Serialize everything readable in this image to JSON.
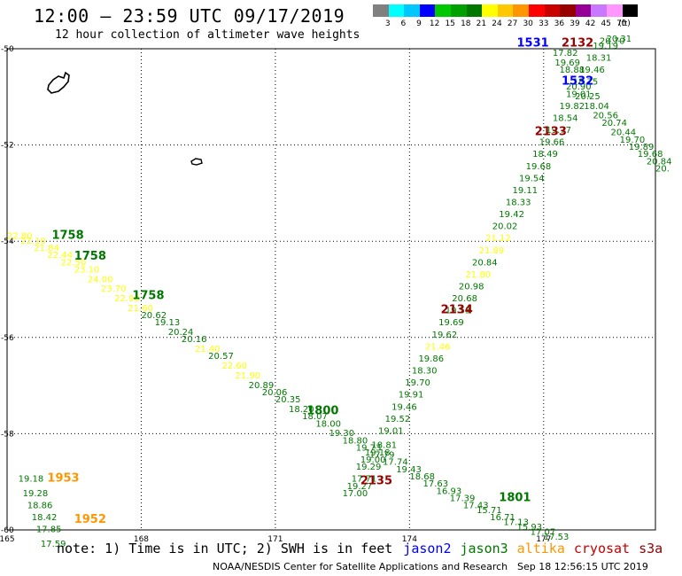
{
  "header": {
    "title": "12:00 – 23:59 UTC 09/17/2019",
    "subtitle": "12 hour collection of altimeter wave heights"
  },
  "colorbar": {
    "unit": "(ft)",
    "bins": [
      {
        "label": "3",
        "color": "#808080"
      },
      {
        "label": "6",
        "color": "#00ffff"
      },
      {
        "label": "9",
        "color": "#00c8ff"
      },
      {
        "label": "12",
        "color": "#0000ff"
      },
      {
        "label": "15",
        "color": "#00c800"
      },
      {
        "label": "18",
        "color": "#00a000"
      },
      {
        "label": "21",
        "color": "#007800"
      },
      {
        "label": "24",
        "color": "#ffff00"
      },
      {
        "label": "27",
        "color": "#ffc800"
      },
      {
        "label": "30",
        "color": "#ff9600"
      },
      {
        "label": "33",
        "color": "#ff0000"
      },
      {
        "label": "36",
        "color": "#c80000"
      },
      {
        "label": "39",
        "color": "#960000"
      },
      {
        "label": "42",
        "color": "#960096"
      },
      {
        "label": "45",
        "color": "#c878ff"
      },
      {
        "label": "70",
        "color": "#ff96ff"
      },
      {
        "label": "",
        "color": "#000000"
      }
    ]
  },
  "map": {
    "lon_labels": [
      "165",
      "168",
      "171",
      "174",
      "177"
    ],
    "lat_labels": [
      "-50",
      "-52",
      "-54",
      "-56",
      "-58",
      "-60"
    ],
    "lon_min": 165,
    "lon_max": 179.5,
    "lat_max": -50,
    "lat_min": -60,
    "islands": [
      {
        "name": "auckland-islands"
      },
      {
        "name": "campbell-island"
      }
    ],
    "time_labels": [
      {
        "text": "1758",
        "lon": 166.0,
        "lat": -53.95,
        "color": "#007800"
      },
      {
        "text": "1758",
        "lon": 166.5,
        "lat": -54.38,
        "color": "#007800"
      },
      {
        "text": "1758",
        "lon": 167.8,
        "lat": -55.2,
        "color": "#007800"
      },
      {
        "text": "1800",
        "lon": 171.7,
        "lat": -57.6,
        "color": "#007800"
      },
      {
        "text": "1953",
        "lon": 165.9,
        "lat": -59.0,
        "color": "#ff9600"
      },
      {
        "text": "1952",
        "lon": 166.5,
        "lat": -59.85,
        "color": "#ff9600"
      },
      {
        "text": "2135",
        "lon": 172.9,
        "lat": -59.05,
        "color": "#960000"
      },
      {
        "text": "2134",
        "lon": 174.7,
        "lat": -55.5,
        "color": "#960000"
      },
      {
        "text": "2133",
        "lon": 176.8,
        "lat": -51.8,
        "color": "#960000"
      },
      {
        "text": "2132",
        "lon": 177.4,
        "lat": -49.95,
        "color": "#960000"
      },
      {
        "text": "1531",
        "lon": 176.4,
        "lat": -49.95,
        "color": "#0000ff"
      },
      {
        "text": "1532",
        "lon": 177.4,
        "lat": -50.75,
        "color": "#0000ff"
      },
      {
        "text": "1801",
        "lon": 176.0,
        "lat": -59.4,
        "color": "#007800"
      }
    ],
    "tracks": [
      {
        "name": "track-a",
        "points": [
          {
            "lon": 165.0,
            "lat": -53.95,
            "v": "22.80",
            "color": "#ffff00"
          },
          {
            "lon": 165.3,
            "lat": -54.05,
            "v": "22.10",
            "color": "#ffff00"
          },
          {
            "lon": 165.6,
            "lat": -54.2,
            "v": "21.84",
            "color": "#ffff00"
          },
          {
            "lon": 165.9,
            "lat": -54.35,
            "v": "22.44",
            "color": "#ffff00"
          },
          {
            "lon": 166.2,
            "lat": -54.5,
            "v": "22.50",
            "color": "#ffff00"
          },
          {
            "lon": 166.5,
            "lat": -54.65,
            "v": "23.10",
            "color": "#ffff00"
          },
          {
            "lon": 166.8,
            "lat": -54.85,
            "v": "24.00",
            "color": "#ffff00"
          },
          {
            "lon": 167.1,
            "lat": -55.05,
            "v": "23.70",
            "color": "#ffff00"
          },
          {
            "lon": 167.4,
            "lat": -55.25,
            "v": "22.90",
            "color": "#ffff00"
          },
          {
            "lon": 167.7,
            "lat": -55.45,
            "v": "21.60",
            "color": "#ffff00"
          },
          {
            "lon": 168.0,
            "lat": -55.6,
            "v": "20.62",
            "color": "#007800"
          },
          {
            "lon": 168.3,
            "lat": -55.75,
            "v": "19.13",
            "color": "#007800"
          },
          {
            "lon": 168.6,
            "lat": -55.95,
            "v": "20.24",
            "color": "#007800"
          },
          {
            "lon": 168.9,
            "lat": -56.1,
            "v": "20.16",
            "color": "#007800"
          },
          {
            "lon": 169.2,
            "lat": -56.3,
            "v": "21.40",
            "color": "#ffff00"
          },
          {
            "lon": 169.5,
            "lat": -56.45,
            "v": "20.57",
            "color": "#007800"
          },
          {
            "lon": 169.8,
            "lat": -56.65,
            "v": "22.60",
            "color": "#ffff00"
          },
          {
            "lon": 170.1,
            "lat": -56.85,
            "v": "21.90",
            "color": "#ffff00"
          },
          {
            "lon": 170.4,
            "lat": -57.05,
            "v": "20.89",
            "color": "#007800"
          },
          {
            "lon": 170.7,
            "lat": -57.2,
            "v": "20.06",
            "color": "#007800"
          },
          {
            "lon": 171.0,
            "lat": -57.35,
            "v": "20.35",
            "color": "#007800"
          },
          {
            "lon": 171.3,
            "lat": -57.55,
            "v": "18.20",
            "color": "#007800"
          },
          {
            "lon": 171.6,
            "lat": -57.7,
            "v": "18.07",
            "color": "#007800"
          },
          {
            "lon": 171.9,
            "lat": -57.85,
            "v": "18.00",
            "color": "#007800"
          },
          {
            "lon": 172.2,
            "lat": -58.05,
            "v": "19.30",
            "color": "#007800"
          },
          {
            "lon": 172.5,
            "lat": -58.2,
            "v": "18.80",
            "color": "#007800"
          },
          {
            "lon": 172.8,
            "lat": -58.35,
            "v": "19.73",
            "color": "#007800"
          },
          {
            "lon": 173.1,
            "lat": -58.5,
            "v": "17.79",
            "color": "#007800"
          },
          {
            "lon": 173.4,
            "lat": -58.65,
            "v": "17.74",
            "color": "#007800"
          },
          {
            "lon": 173.7,
            "lat": -58.8,
            "v": "19.43",
            "color": "#007800"
          },
          {
            "lon": 174.0,
            "lat": -58.95,
            "v": "18.68",
            "color": "#007800"
          },
          {
            "lon": 174.3,
            "lat": -59.1,
            "v": "17.63",
            "color": "#007800"
          },
          {
            "lon": 174.6,
            "lat": -59.25,
            "v": "16.93",
            "color": "#007800"
          },
          {
            "lon": 174.9,
            "lat": -59.4,
            "v": "17.39",
            "color": "#007800"
          },
          {
            "lon": 175.2,
            "lat": -59.55,
            "v": "17.43",
            "color": "#007800"
          },
          {
            "lon": 175.5,
            "lat": -59.65,
            "v": "15.71",
            "color": "#007800"
          },
          {
            "lon": 175.8,
            "lat": -59.8,
            "v": "16.71",
            "color": "#007800"
          },
          {
            "lon": 176.1,
            "lat": -59.9,
            "v": "17.13",
            "color": "#007800"
          },
          {
            "lon": 176.4,
            "lat": -60.0,
            "v": "15.93",
            "color": "#007800"
          },
          {
            "lon": 176.7,
            "lat": -60.1,
            "v": "17.07",
            "color": "#007800"
          },
          {
            "lon": 177.0,
            "lat": -60.2,
            "v": "17.53",
            "color": "#007800"
          }
        ]
      },
      {
        "name": "track-b",
        "points": [
          {
            "lon": 172.5,
            "lat": -59.3,
            "v": "17.00",
            "color": "#007800"
          },
          {
            "lon": 172.6,
            "lat": -59.15,
            "v": "19.27",
            "color": "#007800"
          },
          {
            "lon": 172.7,
            "lat": -59.0,
            "v": "17.71",
            "color": "#007800"
          },
          {
            "lon": 172.8,
            "lat": -58.75,
            "v": "19.29",
            "color": "#007800"
          },
          {
            "lon": 172.9,
            "lat": -58.6,
            "v": "19.00",
            "color": "#007800"
          },
          {
            "lon": 173.0,
            "lat": -58.45,
            "v": "19.18",
            "color": "#007800"
          },
          {
            "lon": 173.15,
            "lat": -58.3,
            "v": "18.81",
            "color": "#007800"
          },
          {
            "lon": 173.3,
            "lat": -58.0,
            "v": "19.01",
            "color": "#007800"
          },
          {
            "lon": 173.45,
            "lat": -57.75,
            "v": "19.52",
            "color": "#007800"
          },
          {
            "lon": 173.6,
            "lat": -57.5,
            "v": "19.46",
            "color": "#007800"
          },
          {
            "lon": 173.75,
            "lat": -57.25,
            "v": "19.91",
            "color": "#007800"
          },
          {
            "lon": 173.9,
            "lat": -57.0,
            "v": "19.70",
            "color": "#007800"
          },
          {
            "lon": 174.05,
            "lat": -56.75,
            "v": "18.30",
            "color": "#007800"
          },
          {
            "lon": 174.2,
            "lat": -56.5,
            "v": "19.86",
            "color": "#007800"
          },
          {
            "lon": 174.35,
            "lat": -56.25,
            "v": "21.46",
            "color": "#ffff00"
          },
          {
            "lon": 174.5,
            "lat": -56.0,
            "v": "19.62",
            "color": "#007800"
          },
          {
            "lon": 174.65,
            "lat": -55.75,
            "v": "19.69",
            "color": "#007800"
          },
          {
            "lon": 174.8,
            "lat": -55.5,
            "v": "19.53",
            "color": "#007800"
          },
          {
            "lon": 174.95,
            "lat": -55.25,
            "v": "20.68",
            "color": "#007800"
          },
          {
            "lon": 175.1,
            "lat": -55.0,
            "v": "20.98",
            "color": "#007800"
          },
          {
            "lon": 175.25,
            "lat": -54.75,
            "v": "21.80",
            "color": "#ffff00"
          },
          {
            "lon": 175.4,
            "lat": -54.5,
            "v": "20.84",
            "color": "#007800"
          },
          {
            "lon": 175.55,
            "lat": -54.25,
            "v": "21.89",
            "color": "#ffff00"
          },
          {
            "lon": 175.7,
            "lat": -54.0,
            "v": "21.12",
            "color": "#ffff00"
          },
          {
            "lon": 175.85,
            "lat": -53.75,
            "v": "20.02",
            "color": "#007800"
          },
          {
            "lon": 176.0,
            "lat": -53.5,
            "v": "19.42",
            "color": "#007800"
          },
          {
            "lon": 176.15,
            "lat": -53.25,
            "v": "18.33",
            "color": "#007800"
          },
          {
            "lon": 176.3,
            "lat": -53.0,
            "v": "19.11",
            "color": "#007800"
          },
          {
            "lon": 176.45,
            "lat": -52.75,
            "v": "19.54",
            "color": "#007800"
          },
          {
            "lon": 176.6,
            "lat": -52.5,
            "v": "19.68",
            "color": "#007800"
          },
          {
            "lon": 176.75,
            "lat": -52.25,
            "v": "18.49",
            "color": "#007800"
          },
          {
            "lon": 176.9,
            "lat": -52.0,
            "v": "19.66",
            "color": "#007800"
          },
          {
            "lon": 177.05,
            "lat": -51.75,
            "v": "19.77",
            "color": "#007800"
          },
          {
            "lon": 177.2,
            "lat": -51.5,
            "v": "18.54",
            "color": "#007800"
          },
          {
            "lon": 177.35,
            "lat": -51.25,
            "v": "19.82",
            "color": "#007800"
          },
          {
            "lon": 177.5,
            "lat": -51.0,
            "v": "19.01",
            "color": "#007800"
          },
          {
            "lon": 177.65,
            "lat": -50.75,
            "v": "18.75",
            "color": "#007800"
          },
          {
            "lon": 177.8,
            "lat": -50.5,
            "v": "19.46",
            "color": "#007800"
          },
          {
            "lon": 177.95,
            "lat": -50.25,
            "v": "18.31",
            "color": "#007800"
          },
          {
            "lon": 178.1,
            "lat": -50.0,
            "v": "19.19",
            "color": "#007800"
          },
          {
            "lon": 178.25,
            "lat": -49.9,
            "v": "20.70",
            "color": "#007800"
          },
          {
            "lon": 178.4,
            "lat": -49.85,
            "v": "20.31",
            "color": "#007800"
          }
        ]
      },
      {
        "name": "track-c",
        "points": [
          {
            "lon": 177.2,
            "lat": -50.15,
            "v": "17.82",
            "color": "#007800"
          },
          {
            "lon": 177.25,
            "lat": -50.35,
            "v": "19.69",
            "color": "#007800"
          },
          {
            "lon": 177.35,
            "lat": -50.5,
            "v": "18.88",
            "color": "#007800"
          },
          {
            "lon": 177.5,
            "lat": -50.85,
            "v": "20.90",
            "color": "#007800"
          },
          {
            "lon": 177.7,
            "lat": -51.05,
            "v": "20.25",
            "color": "#007800"
          },
          {
            "lon": 177.9,
            "lat": -51.25,
            "v": "18.04",
            "color": "#007800"
          },
          {
            "lon": 178.1,
            "lat": -51.45,
            "v": "20.56",
            "color": "#007800"
          },
          {
            "lon": 178.3,
            "lat": -51.6,
            "v": "20.74",
            "color": "#007800"
          },
          {
            "lon": 178.5,
            "lat": -51.8,
            "v": "20.44",
            "color": "#007800"
          },
          {
            "lon": 178.7,
            "lat": -51.95,
            "v": "19.70",
            "color": "#007800"
          },
          {
            "lon": 178.9,
            "lat": -52.1,
            "v": "19.89",
            "color": "#007800"
          },
          {
            "lon": 179.1,
            "lat": -52.25,
            "v": "19.68",
            "color": "#007800"
          },
          {
            "lon": 179.3,
            "lat": -52.4,
            "v": "20.84",
            "color": "#007800"
          },
          {
            "lon": 179.5,
            "lat": -52.55,
            "v": "20.",
            "color": "#007800"
          }
        ]
      },
      {
        "name": "track-d",
        "points": [
          {
            "lon": 165.25,
            "lat": -59.0,
            "v": "19.18",
            "color": "#007800"
          },
          {
            "lon": 165.35,
            "lat": -59.3,
            "v": "19.28",
            "color": "#007800"
          },
          {
            "lon": 165.45,
            "lat": -59.55,
            "v": "18.86",
            "color": "#007800"
          },
          {
            "lon": 165.55,
            "lat": -59.8,
            "v": "18.42",
            "color": "#007800"
          },
          {
            "lon": 165.65,
            "lat": -60.05,
            "v": "17.85",
            "color": "#007800"
          },
          {
            "lon": 165.75,
            "lat": -60.35,
            "v": "17.59",
            "color": "#007800"
          }
        ]
      }
    ]
  },
  "footer": {
    "note": "note: 1) Time is in UTC; 2) SWH is in feet",
    "satellites": [
      {
        "name": "jason2",
        "color": "#0000ff"
      },
      {
        "name": "jason3",
        "color": "#007800"
      },
      {
        "name": "altika",
        "color": "#ff9600"
      },
      {
        "name": "cryosat",
        "color": "#c80000"
      },
      {
        "name": "s3a",
        "color": "#960000"
      }
    ],
    "credit": "NOAA/NESDIS Center for Satellite Applications and Research",
    "timestamp": "Sep 18 12:56:15 UTC 2019"
  }
}
